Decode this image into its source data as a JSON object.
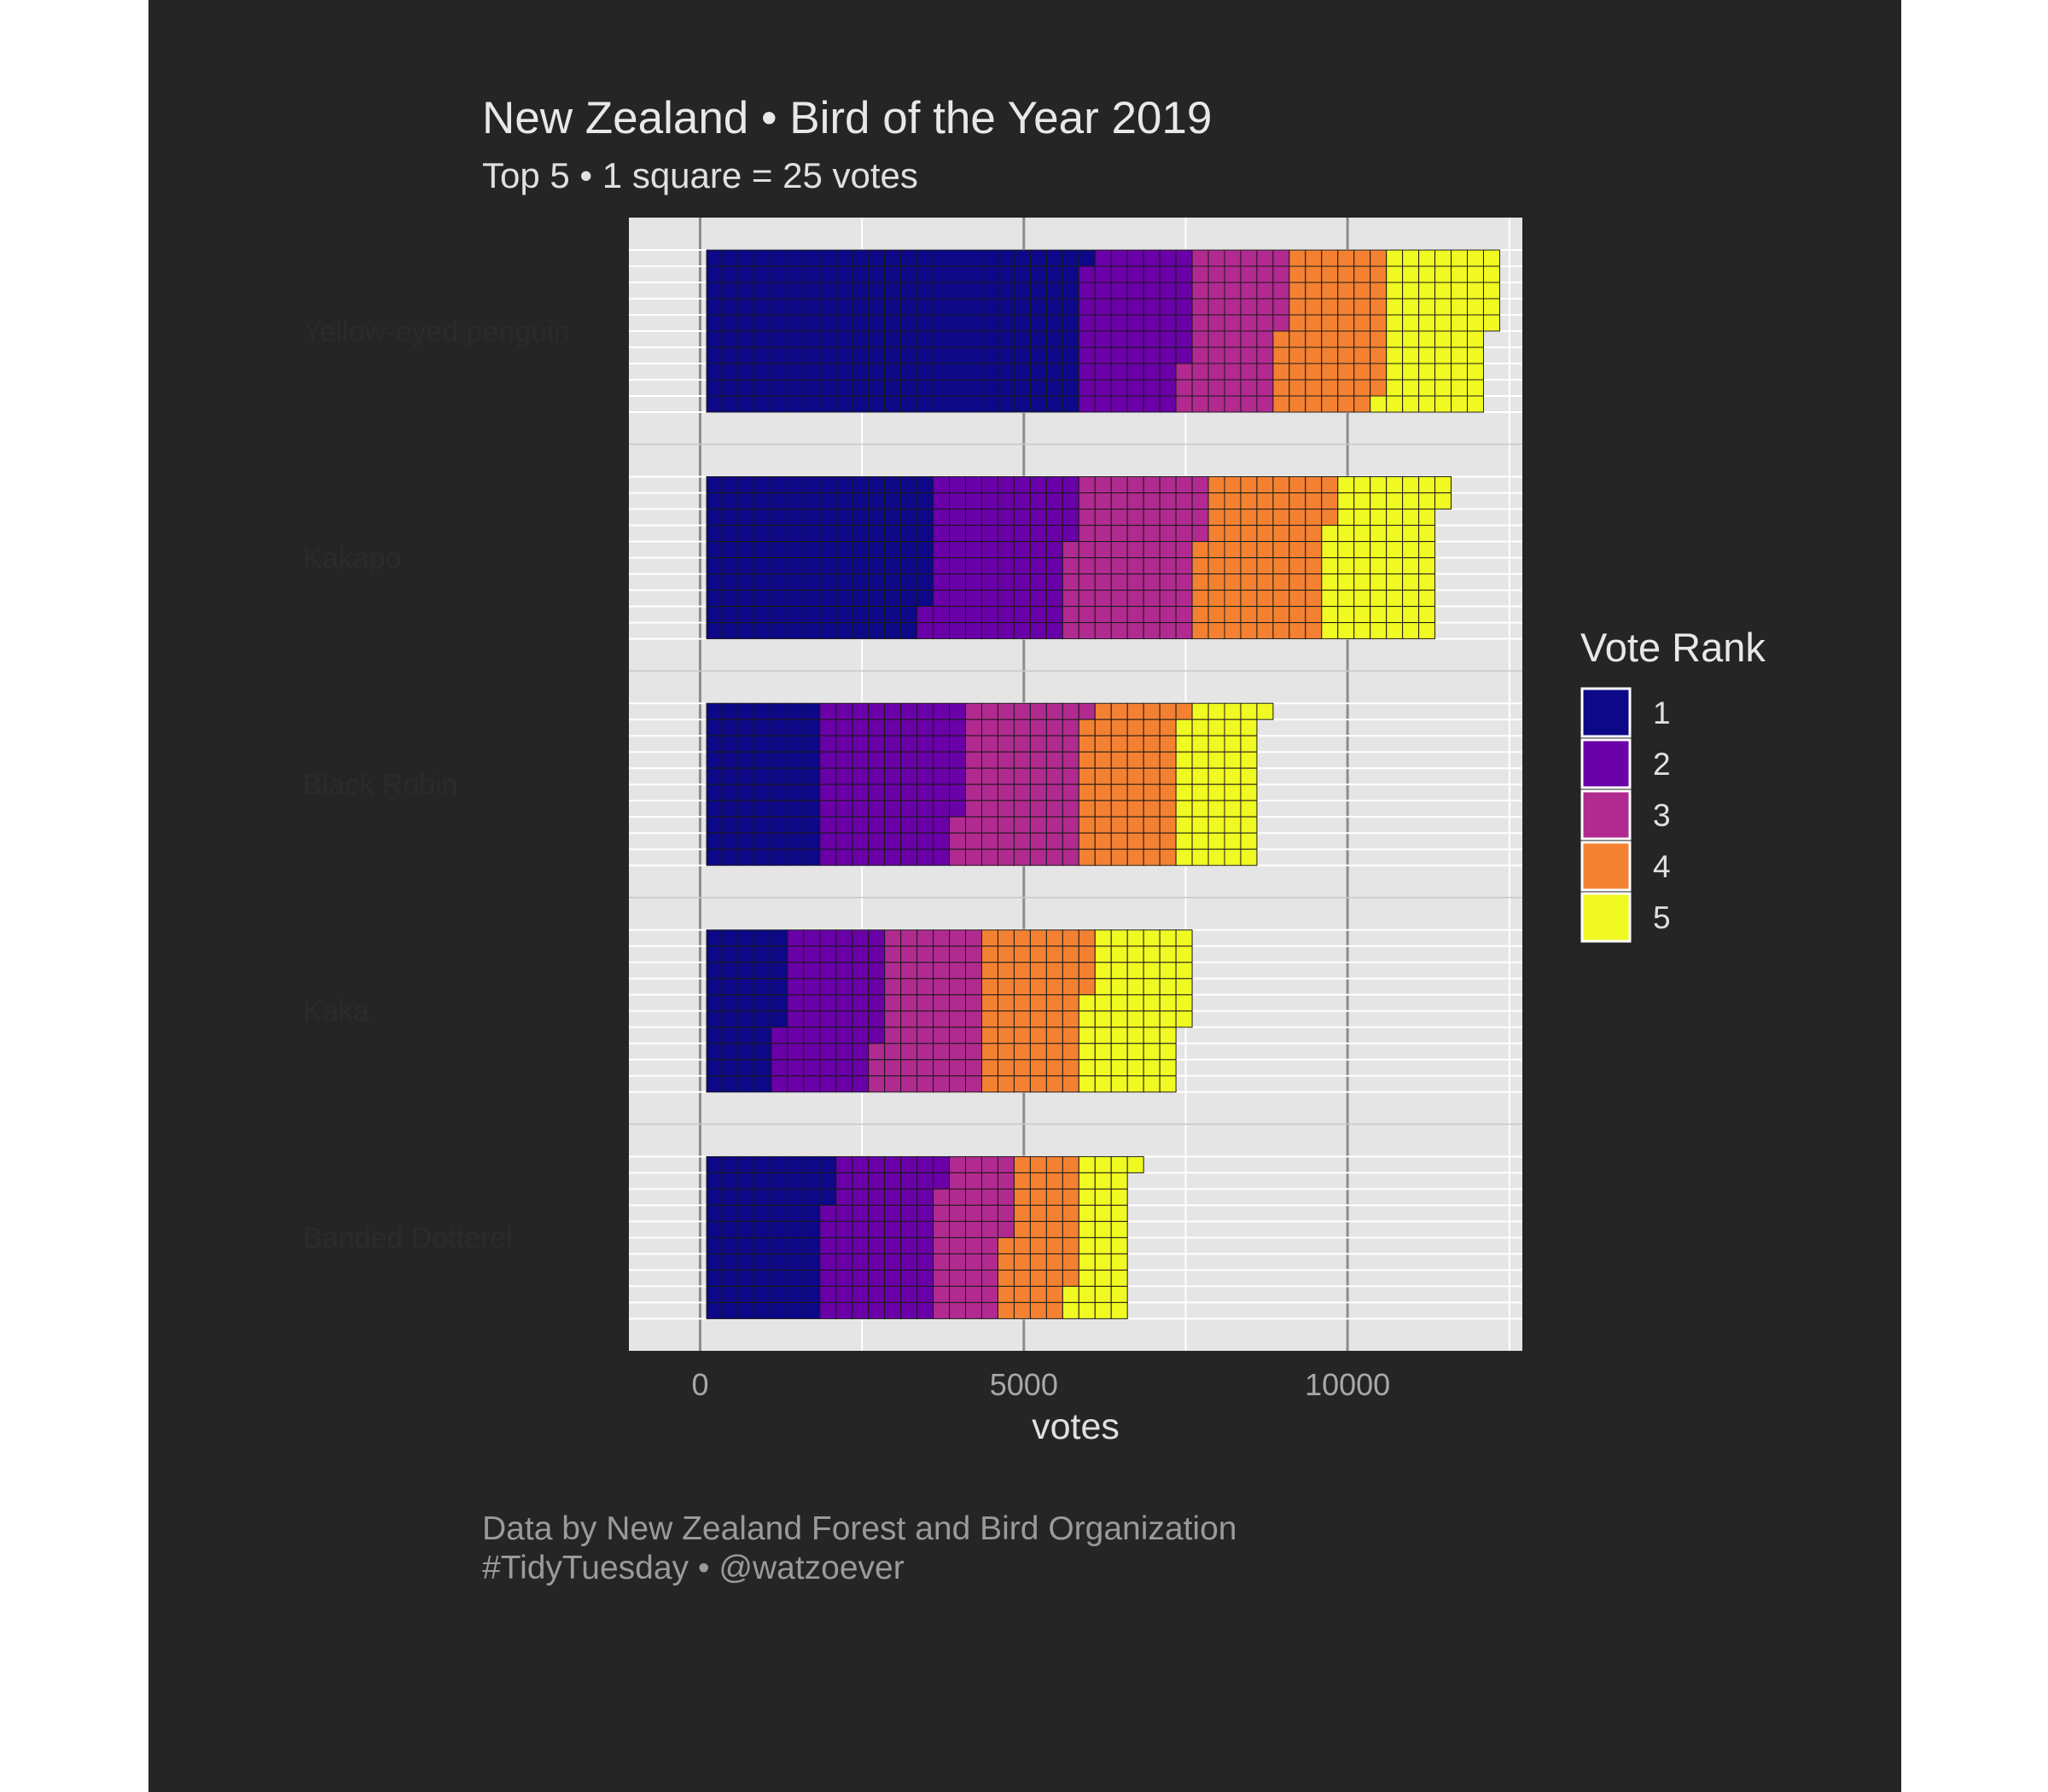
{
  "chart_data": {
    "type": "bar",
    "title": "New Zealand • Bird of the Year 2019",
    "subtitle": "Top 5 • 1 square = 25 votes",
    "xlabel": "votes",
    "ylabel": "",
    "xlim": [
      -1100,
      12700
    ],
    "xticks": [
      0,
      5000,
      10000
    ],
    "tick_labels": [
      "0",
      "5000",
      "10000"
    ],
    "categories": [
      "Yellow-eyed penguin",
      "Kakapo",
      "Black Robin",
      "Kaka",
      "Banded Dotterel"
    ],
    "legend": {
      "title": "Vote Rank",
      "position": "right"
    },
    "series": [
      {
        "name": "1",
        "color": "#0d0887",
        "values": [
          5775,
          3450,
          1750,
          1150,
          1825
        ]
      },
      {
        "name": "2",
        "color": "#6a00a8",
        "values": [
          1650,
          2150,
          2175,
          1525,
          1725
        ]
      },
      {
        "name": "3",
        "color": "#b12a90",
        "values": [
          1450,
          2000,
          1850,
          1575,
          1075
        ]
      },
      {
        "name": "4",
        "color": "#f48131",
        "values": [
          1600,
          1975,
          1500,
          1600,
          1075
        ]
      },
      {
        "name": "5",
        "color": "#f0f921",
        "values": [
          1650,
          1725,
          1250,
          1550,
          825
        ]
      }
    ],
    "square_votes": 25,
    "grid": true
  },
  "caption": {
    "line1": "Data by New Zealand Forest and Bird Organization",
    "line2": "#TidyTuesday • @watzoever"
  }
}
